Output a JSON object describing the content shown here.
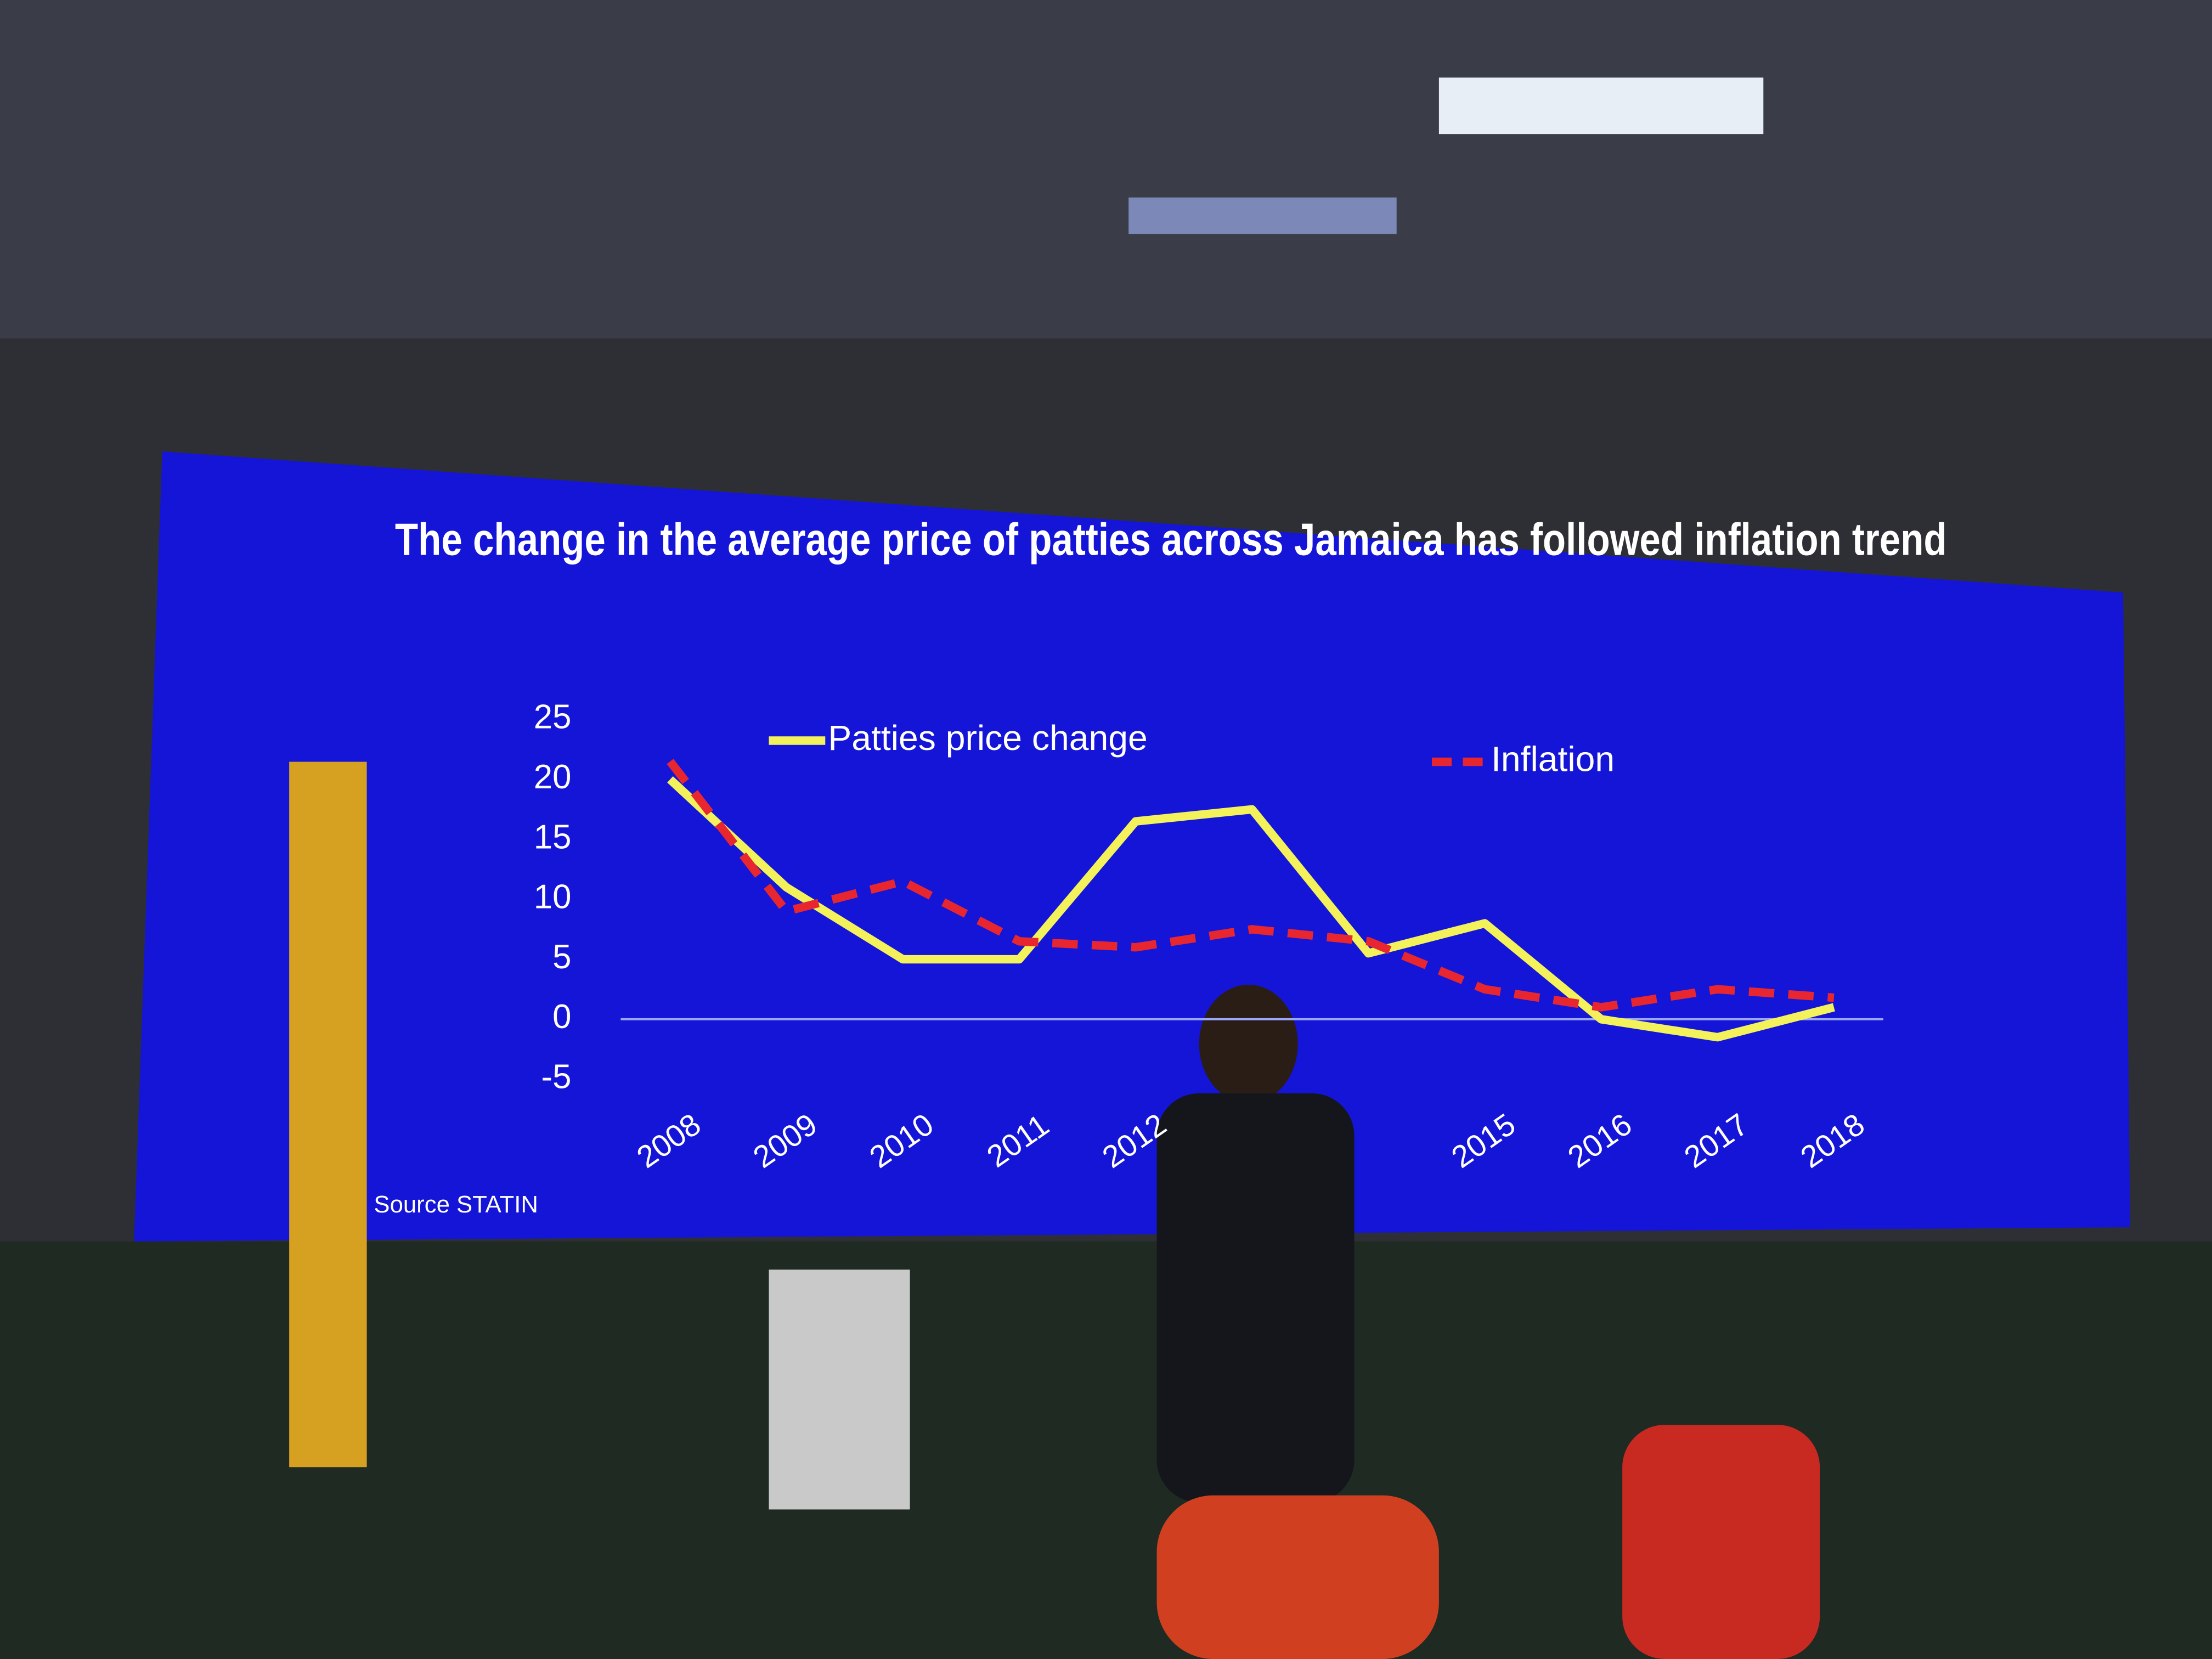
{
  "chart_data": {
    "type": "line",
    "title": "The change in the average price of patties across Jamaica has followed inflation trend",
    "source": "Source STATIN",
    "categories": [
      "2008",
      "2009",
      "2010",
      "2011",
      "2012",
      null,
      null,
      "2015",
      "2016",
      "2017",
      "2018"
    ],
    "series": [
      {
        "name": "Patties price change",
        "color": "#f4f25a",
        "dash": false,
        "values": [
          20,
          11,
          5,
          5,
          16.5,
          17.5,
          5.5,
          8,
          0,
          -1.5,
          1
        ]
      },
      {
        "name": "Inflation",
        "color": "#e8262f",
        "dash": true,
        "values": [
          21.5,
          9,
          11.5,
          6.5,
          6,
          7.5,
          6.5,
          2.5,
          1,
          2.5,
          1.8
        ]
      }
    ],
    "ylim": [
      -5,
      25
    ],
    "yticks": [
      -5,
      0,
      5,
      10,
      15,
      20,
      25
    ],
    "grid": false
  }
}
